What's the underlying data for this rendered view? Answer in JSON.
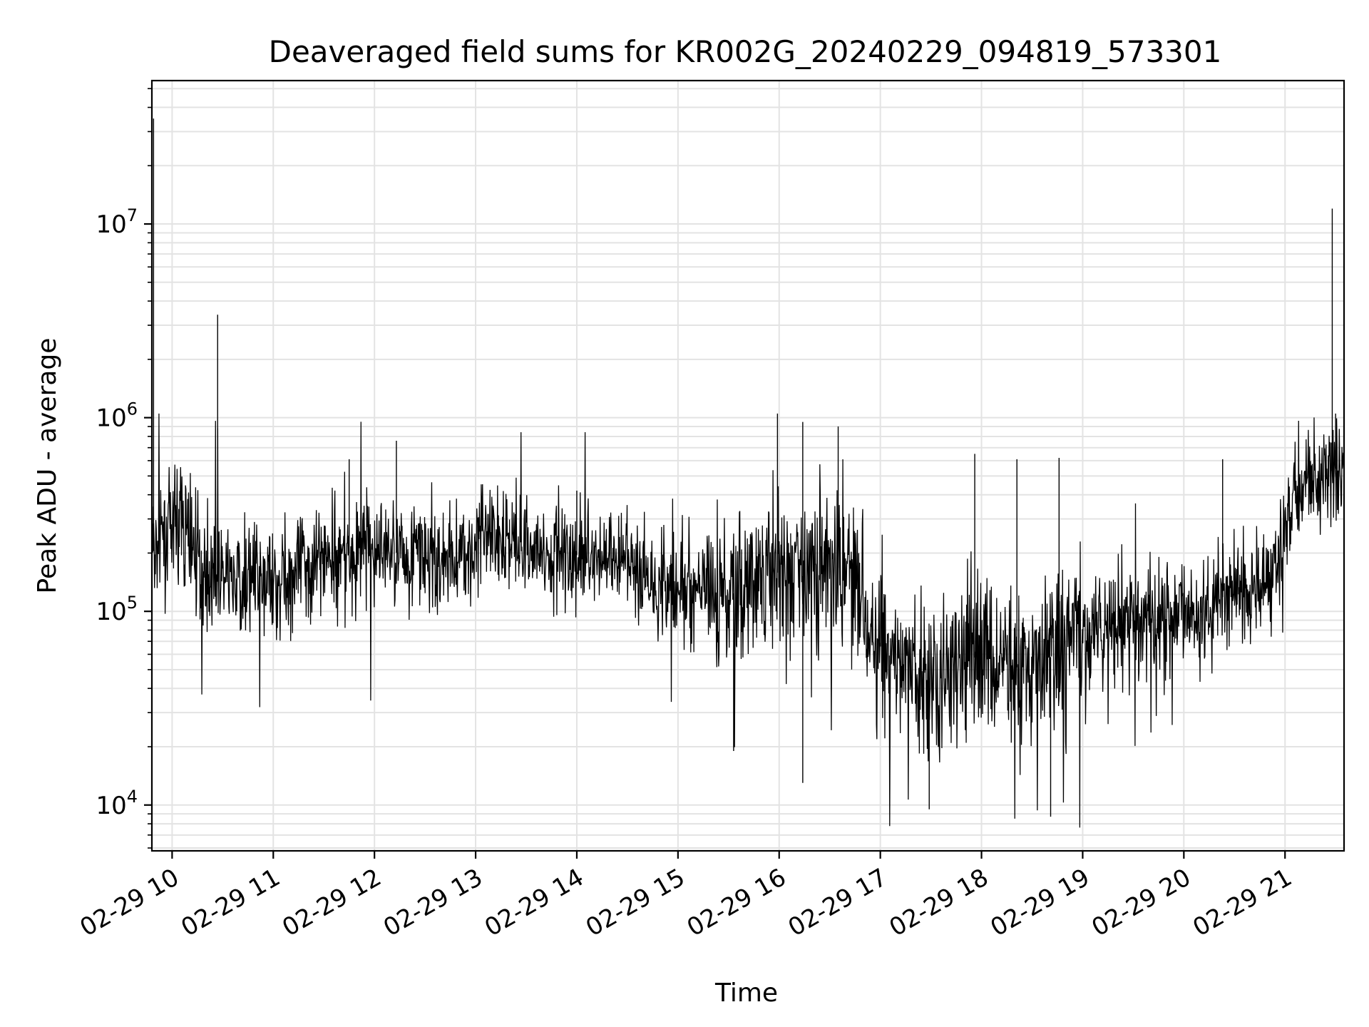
{
  "chart_data": {
    "type": "line",
    "title": "Deaveraged field sums for KR002G_20240229_094819_573301",
    "xlabel": "Time",
    "ylabel": "Peak ADU - average",
    "y_scale": "log",
    "ylim": [
      5800,
      55000000
    ],
    "xlim": [
      "2024-02-29 09:48",
      "2024-02-29 21:35"
    ],
    "grid": true,
    "line_color": "#000000",
    "grid_color": "#e3e3e3",
    "x_ticks": [
      {
        "t": "2024-02-29 10:00",
        "label": "02-29 10"
      },
      {
        "t": "2024-02-29 11:00",
        "label": "02-29 11"
      },
      {
        "t": "2024-02-29 12:00",
        "label": "02-29 12"
      },
      {
        "t": "2024-02-29 13:00",
        "label": "02-29 13"
      },
      {
        "t": "2024-02-29 14:00",
        "label": "02-29 14"
      },
      {
        "t": "2024-02-29 15:00",
        "label": "02-29 15"
      },
      {
        "t": "2024-02-29 16:00",
        "label": "02-29 16"
      },
      {
        "t": "2024-02-29 17:00",
        "label": "02-29 17"
      },
      {
        "t": "2024-02-29 18:00",
        "label": "02-29 18"
      },
      {
        "t": "2024-02-29 19:00",
        "label": "02-29 19"
      },
      {
        "t": "2024-02-29 20:00",
        "label": "02-29 20"
      },
      {
        "t": "2024-02-29 21:00",
        "label": "02-29 21"
      }
    ],
    "y_ticks": [
      {
        "value": 10000,
        "base": "10",
        "exp": "4"
      },
      {
        "value": 100000,
        "base": "10",
        "exp": "5"
      },
      {
        "value": 1000000,
        "base": "10",
        "exp": "6"
      },
      {
        "value": 10000000,
        "base": "10",
        "exp": "7"
      }
    ],
    "series": [
      {
        "baseline": [
          {
            "t": "2024-02-29 09:48",
            "y": 200000
          },
          {
            "t": "2024-02-29 10:05",
            "y": 300000
          },
          {
            "t": "2024-02-29 10:20",
            "y": 150000
          },
          {
            "t": "2024-02-29 11:00",
            "y": 140000
          },
          {
            "t": "2024-02-29 11:30",
            "y": 190000
          },
          {
            "t": "2024-02-29 12:00",
            "y": 210000
          },
          {
            "t": "2024-02-29 12:45",
            "y": 180000
          },
          {
            "t": "2024-02-29 13:10",
            "y": 250000
          },
          {
            "t": "2024-02-29 13:40",
            "y": 200000
          },
          {
            "t": "2024-02-29 14:20",
            "y": 190000
          },
          {
            "t": "2024-02-29 14:50",
            "y": 140000
          },
          {
            "t": "2024-02-29 15:30",
            "y": 120000
          },
          {
            "t": "2024-02-29 16:00",
            "y": 160000
          },
          {
            "t": "2024-02-29 16:45",
            "y": 170000
          },
          {
            "t": "2024-02-29 17:00",
            "y": 60000
          },
          {
            "t": "2024-02-29 17:30",
            "y": 45000
          },
          {
            "t": "2024-02-29 18:00",
            "y": 60000
          },
          {
            "t": "2024-02-29 18:30",
            "y": 50000
          },
          {
            "t": "2024-02-29 19:00",
            "y": 75000
          },
          {
            "t": "2024-02-29 19:30",
            "y": 85000
          },
          {
            "t": "2024-02-29 20:00",
            "y": 100000
          },
          {
            "t": "2024-02-29 20:15",
            "y": 110000
          },
          {
            "t": "2024-02-29 20:55",
            "y": 160000
          },
          {
            "t": "2024-02-29 21:05",
            "y": 380000
          },
          {
            "t": "2024-02-29 21:20",
            "y": 480000
          },
          {
            "t": "2024-02-29 21:35",
            "y": 580000
          }
        ],
        "spikes": [
          {
            "t": "2024-02-29 09:49",
            "y": 35000000
          },
          {
            "t": "2024-02-29 10:27",
            "y": 3400000
          },
          {
            "t": "2024-02-29 15:59",
            "y": 1050000
          },
          {
            "t": "2024-02-29 16:14",
            "y": 950000
          },
          {
            "t": "2024-02-29 21:28",
            "y": 12000000
          },
          {
            "t": "2024-02-29 21:30",
            "y": 1050000
          },
          {
            "t": "2024-02-29 16:14",
            "y": 13000
          },
          {
            "t": "2024-02-29 17:29",
            "y": 9500
          },
          {
            "t": "2024-02-29 18:41",
            "y": 8700
          },
          {
            "t": "2024-02-29 15:33",
            "y": 19000
          },
          {
            "t": "2024-02-29 12:13",
            "y": 760000
          },
          {
            "t": "2024-02-29 16:35",
            "y": 900000
          },
          {
            "t": "2024-02-29 17:56",
            "y": 650000
          },
          {
            "t": "2024-02-29 18:21",
            "y": 610000
          },
          {
            "t": "2024-02-29 18:46",
            "y": 620000
          },
          {
            "t": "2024-02-29 20:23",
            "y": 610000
          },
          {
            "t": "2024-02-29 14:00",
            "y": 420000
          },
          {
            "t": "2024-02-29 11:45",
            "y": 610000
          }
        ]
      }
    ]
  }
}
